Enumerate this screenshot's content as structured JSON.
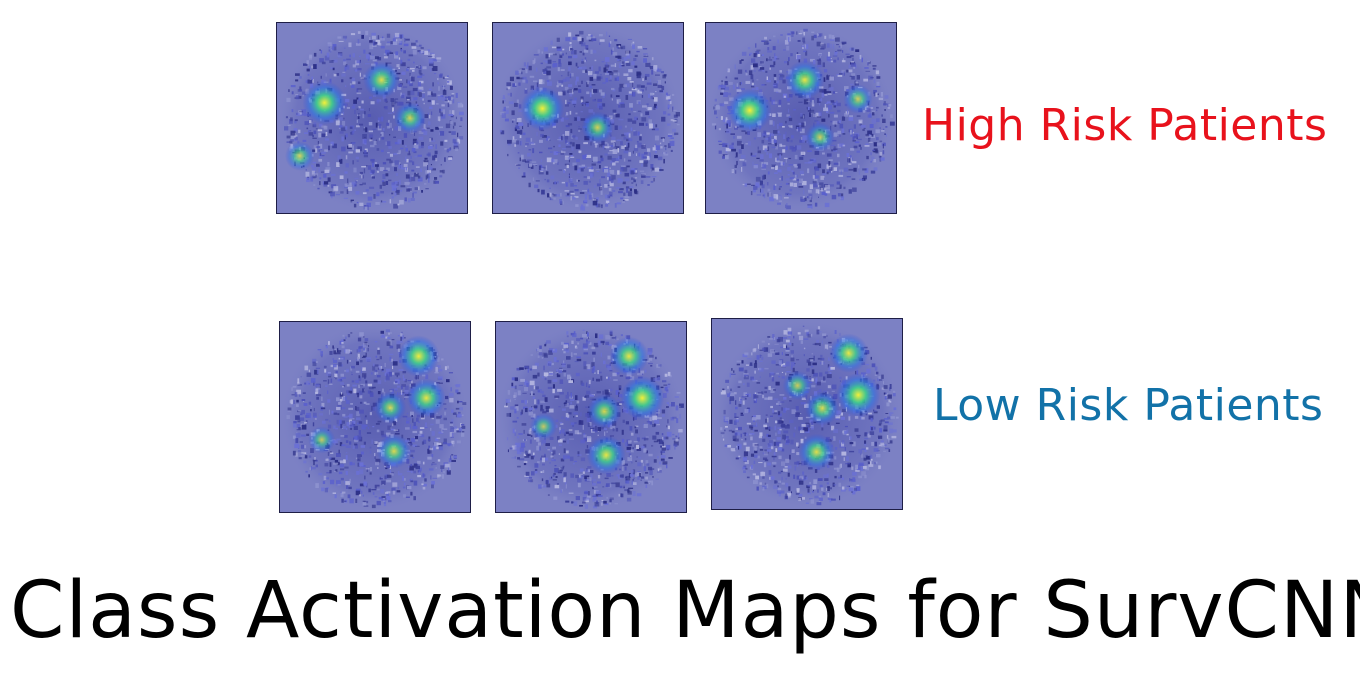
{
  "title": "Class Activation Maps for SurvCNN",
  "rows": [
    {
      "label": "High Risk Patients",
      "label_color": "#e8121c",
      "tiles": [
        {
          "hotspots": [
            [
              0.25,
              0.42,
              1.0
            ],
            [
              0.55,
              0.3,
              0.7
            ],
            [
              0.7,
              0.5,
              0.5
            ],
            [
              0.12,
              0.7,
              0.4
            ]
          ]
        },
        {
          "hotspots": [
            [
              0.26,
              0.45,
              1.0
            ],
            [
              0.55,
              0.55,
              0.5
            ]
          ]
        },
        {
          "hotspots": [
            [
              0.23,
              0.46,
              1.0
            ],
            [
              0.52,
              0.3,
              0.8
            ],
            [
              0.8,
              0.4,
              0.4
            ],
            [
              0.6,
              0.6,
              0.4
            ]
          ]
        }
      ]
    },
    {
      "label": "Low Risk Patients",
      "label_color": "#1272a8",
      "tiles": [
        {
          "hotspots": [
            [
              0.73,
              0.18,
              0.9
            ],
            [
              0.77,
              0.4,
              0.8
            ],
            [
              0.58,
              0.45,
              0.5
            ],
            [
              0.6,
              0.68,
              0.6
            ],
            [
              0.22,
              0.62,
              0.3
            ]
          ]
        },
        {
          "hotspots": [
            [
              0.7,
              0.18,
              0.8
            ],
            [
              0.77,
              0.4,
              1.0
            ],
            [
              0.57,
              0.47,
              0.6
            ],
            [
              0.58,
              0.7,
              0.8
            ],
            [
              0.25,
              0.55,
              0.3
            ]
          ]
        },
        {
          "hotspots": [
            [
              0.72,
              0.18,
              0.8
            ],
            [
              0.77,
              0.4,
              1.0
            ],
            [
              0.58,
              0.47,
              0.6
            ],
            [
              0.55,
              0.7,
              0.7
            ],
            [
              0.45,
              0.35,
              0.4
            ]
          ]
        }
      ]
    }
  ]
}
